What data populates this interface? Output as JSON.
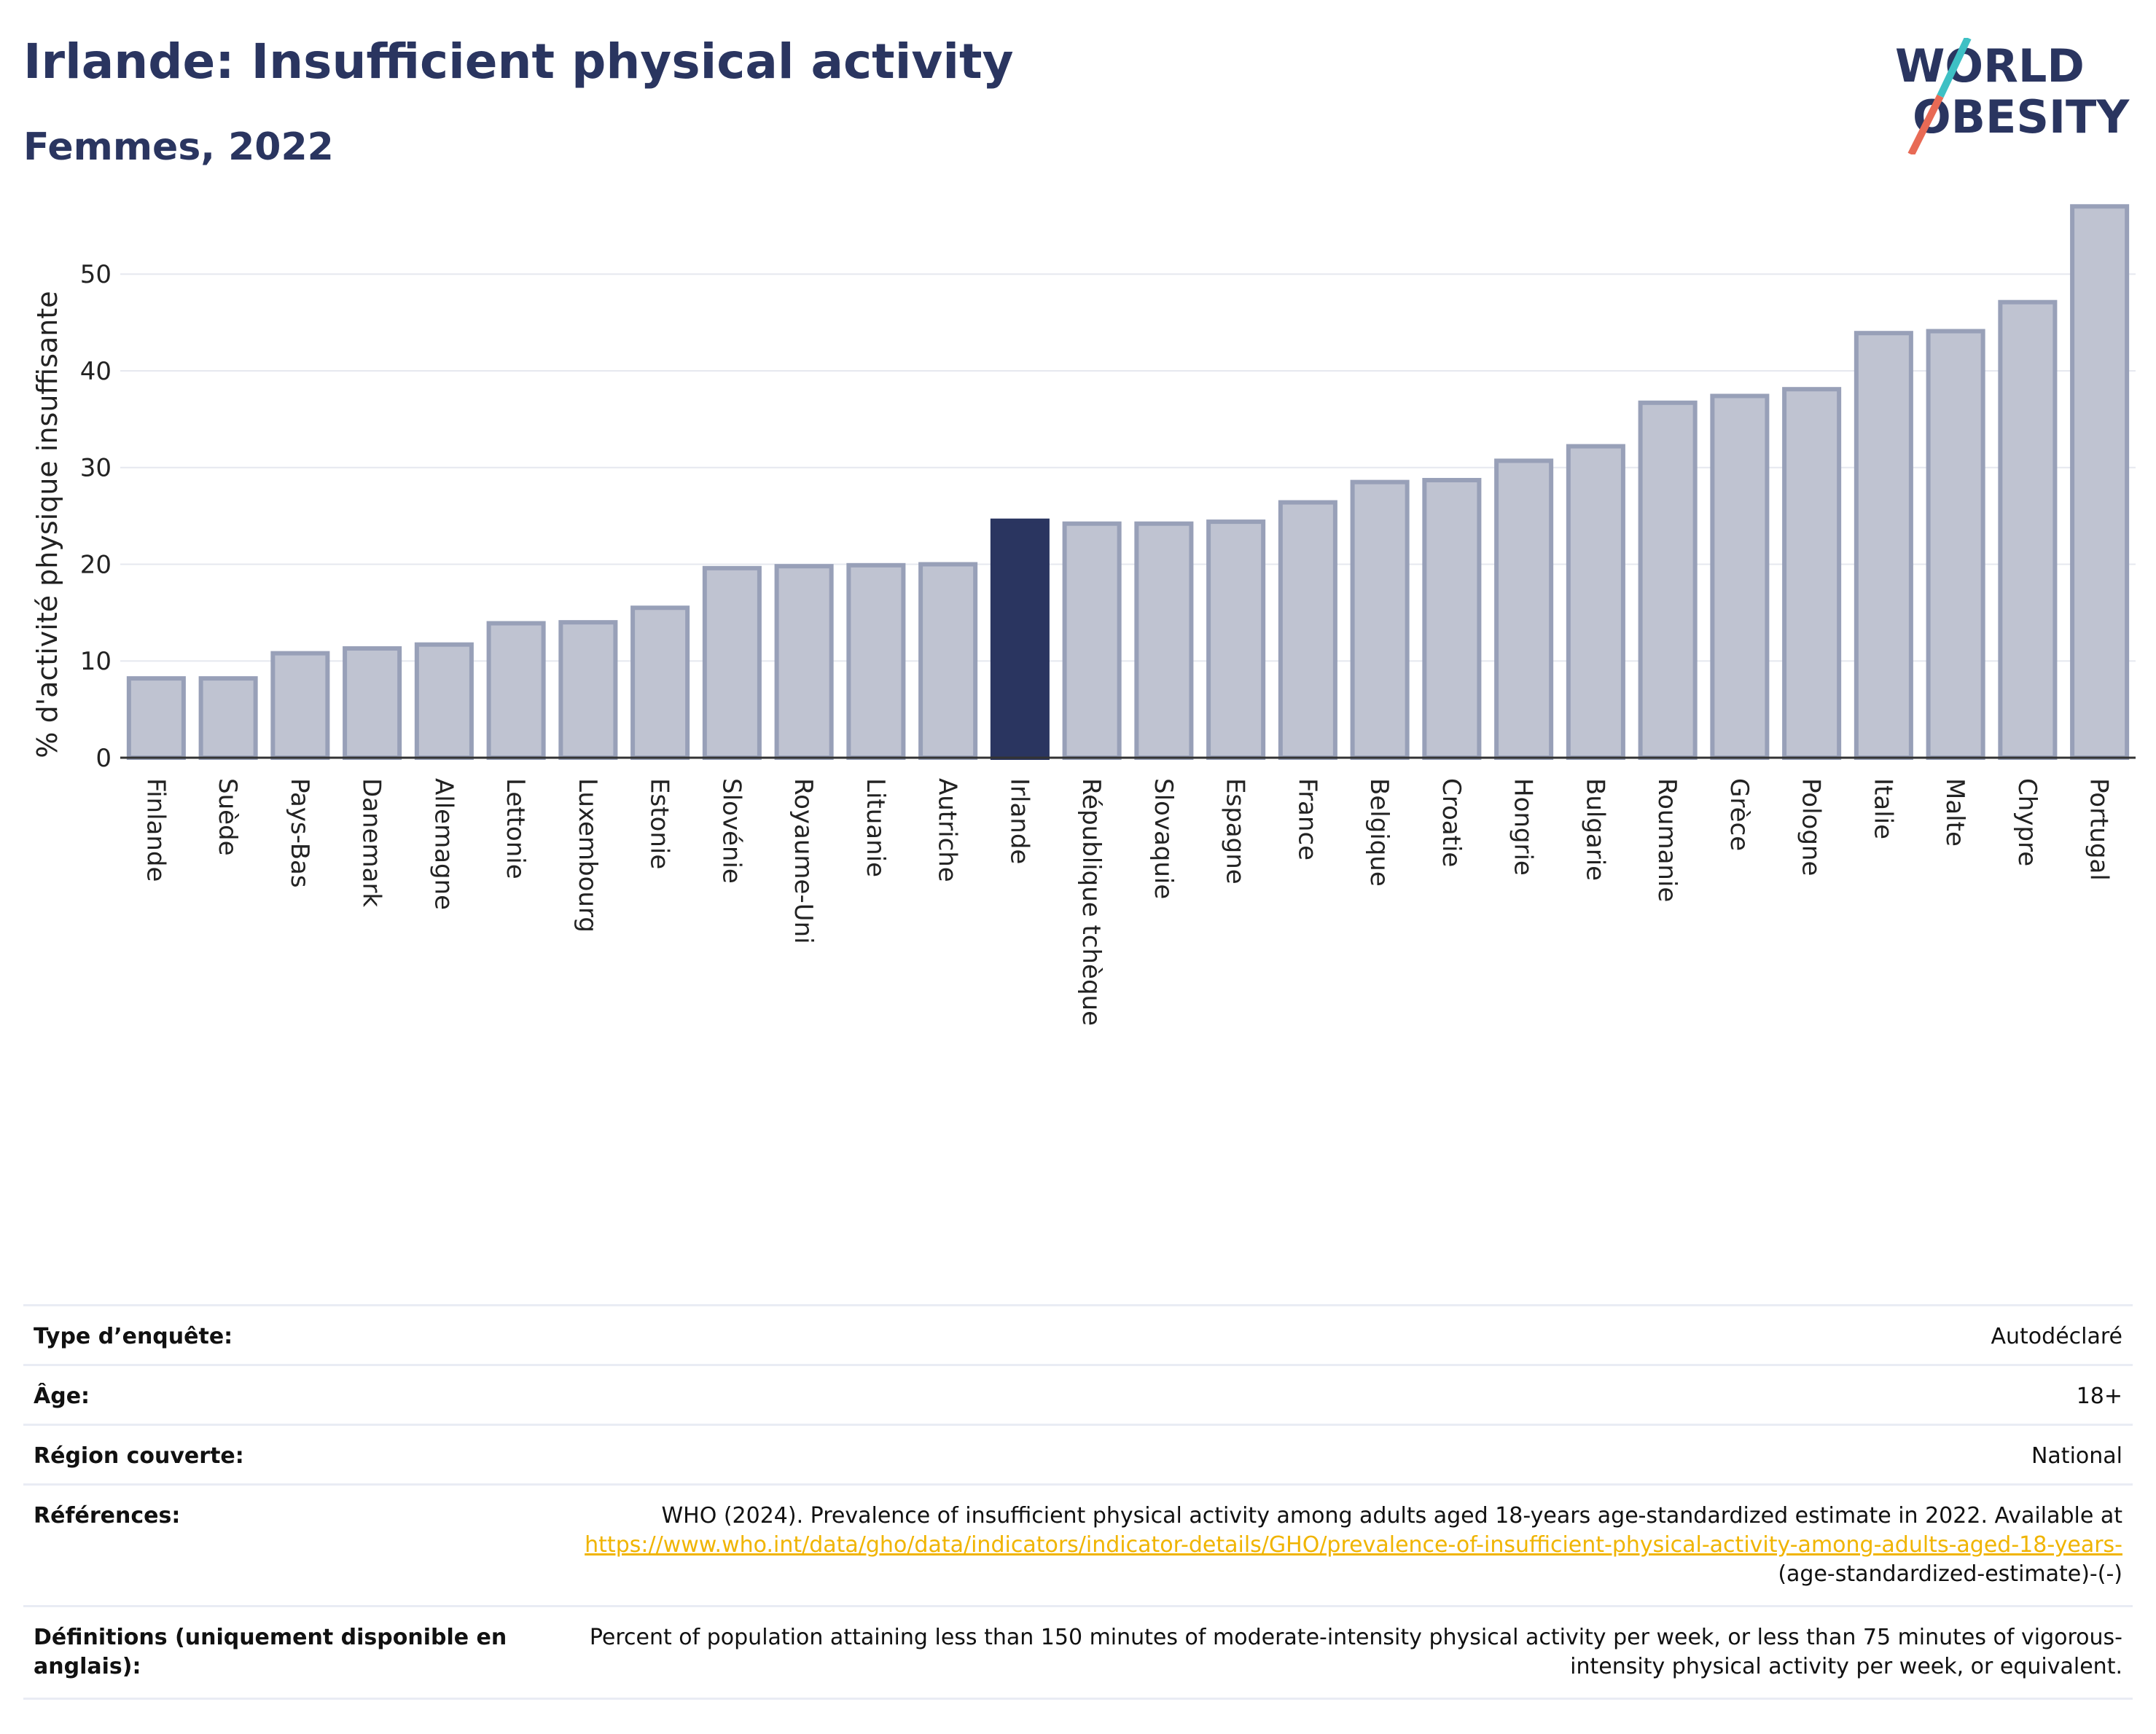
{
  "header": {
    "title": "Irlande: Insufficient physical activity",
    "subtitle": "Femmes, 2022",
    "logo_line1": "WORLD",
    "logo_line2": "OBESITY"
  },
  "colors": {
    "title": "#2a3560",
    "bar_default": "#bfc3d1",
    "bar_default_stroke": "#98a0b8",
    "bar_highlight": "#2a3560",
    "logo_slash_top": "#3ec0c4",
    "logo_slash_bottom": "#e86a55",
    "link": "#f0b400"
  },
  "chart_data": {
    "type": "bar",
    "ylabel": "% d'activité physique insuffisante",
    "ylim": [
      0,
      58
    ],
    "yticks": [
      0,
      10,
      20,
      30,
      40,
      50
    ],
    "grid": true,
    "highlight": "Irlande",
    "categories": [
      "Finlande",
      "Suède",
      "Pays-Bas",
      "Danemark",
      "Allemagne",
      "Lettonie",
      "Luxembourg",
      "Estonie",
      "Slovénie",
      "Royaume-Uni",
      "Lituanie",
      "Autriche",
      "Irlande",
      "République tchèque",
      "Slovaquie",
      "Espagne",
      "France",
      "Belgique",
      "Croatie",
      "Hongrie",
      "Bulgarie",
      "Roumanie",
      "Grèce",
      "Pologne",
      "Italie",
      "Malte",
      "Chypre",
      "Portugal"
    ],
    "values": [
      8.2,
      8.2,
      10.8,
      11.3,
      11.7,
      13.9,
      14.0,
      15.5,
      19.6,
      19.8,
      19.9,
      20.0,
      24.5,
      24.2,
      24.2,
      24.4,
      26.4,
      28.5,
      28.7,
      30.7,
      32.2,
      36.7,
      37.4,
      38.1,
      43.9,
      44.1,
      47.1,
      57.0
    ]
  },
  "metadata": {
    "rows": [
      {
        "key": "Type d’enquête:",
        "value": "Autodéclaré"
      },
      {
        "key": "Âge:",
        "value": "18+"
      },
      {
        "key": "Région couverte:",
        "value": "National"
      },
      {
        "key": "Références:",
        "value_prefix": "WHO (2024). Prevalence of insufficient physical activity among adults aged 18-years age-standardized estimate in 2022. Available at",
        "link_text": "https://www.who.int/data/gho/data/indicators/indicator-details/GHO/prevalence-of-insufficient-physical-activity-among-adults-aged-18-years-",
        "value_suffix": "(age-standardized-estimate)-(-)"
      },
      {
        "key": "Définitions (uniquement disponible en anglais):",
        "value": "Percent of population attaining less than 150 minutes of moderate-intensity physical activity per week, or less than 75 minutes of vigorous-intensity physical activity per week, or equivalent."
      }
    ]
  }
}
